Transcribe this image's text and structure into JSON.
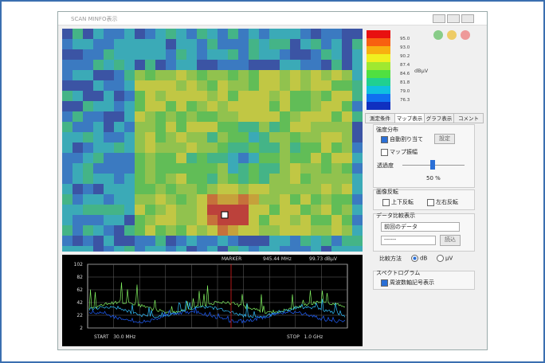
{
  "window": {
    "title": "SCAN MINFO表示"
  },
  "colorbar": {
    "labels": [
      "95.0",
      "93.0",
      "90.2",
      "87.4",
      "84.6",
      "81.8",
      "79.0",
      "76.3"
    ],
    "unit": "dBμV"
  },
  "spectrum": {
    "yticks": [
      "102",
      "82",
      "62",
      "42",
      "22",
      "2"
    ],
    "marker": "MARKER",
    "marker_freq": "945.44 MHz",
    "marker_level": "99.73 dBμV",
    "start": "START   30.0 MHz",
    "stop": "STOP   1.0 GHz"
  },
  "tabs": [
    "測定条件",
    "マップ表示",
    "グラフ表示",
    "コメント"
  ],
  "panel": {
    "intensity": {
      "title": "強度分布",
      "auto": "自動割り当て",
      "set_button": "設定",
      "map_amplitude": "マップ振幅",
      "transparency": "透過度",
      "transparency_value": "50 %"
    },
    "flip": {
      "title": "画像反転",
      "vertical": "上下反転",
      "horizontal": "左右反転"
    },
    "compare": {
      "title": "データ比較表示",
      "dropdown": "前回のデータ",
      "field": "------",
      "load_button": "読込",
      "method": "比較方法",
      "db": "dB",
      "uv": "μV"
    },
    "spectrogram": {
      "title": "スペクトログラム",
      "freq_axis": "周波数軸記号表示"
    }
  }
}
